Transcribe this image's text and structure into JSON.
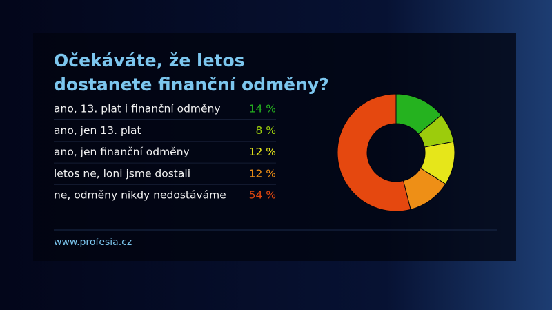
{
  "chart_data": {
    "type": "pie",
    "donut": true,
    "title": "Očekáváte, že letos dostanete finanční odměny?",
    "categories": [
      "ano, 13. plat i finanční odměny",
      "ano, jen 13. plat",
      "ano, jen finanční odměny",
      "letos ne, loni jsme dostali",
      "ne, odměny nikdy nedostáváme"
    ],
    "values": [
      14,
      8,
      12,
      12,
      54
    ],
    "value_labels": [
      "14 %",
      "8 %",
      "12 %",
      "12 %",
      "54 %"
    ],
    "colors": [
      "#25b21f",
      "#9ccc0c",
      "#e6e61a",
      "#ee8f16",
      "#e5480f"
    ],
    "source": "www.profesia.cz"
  }
}
